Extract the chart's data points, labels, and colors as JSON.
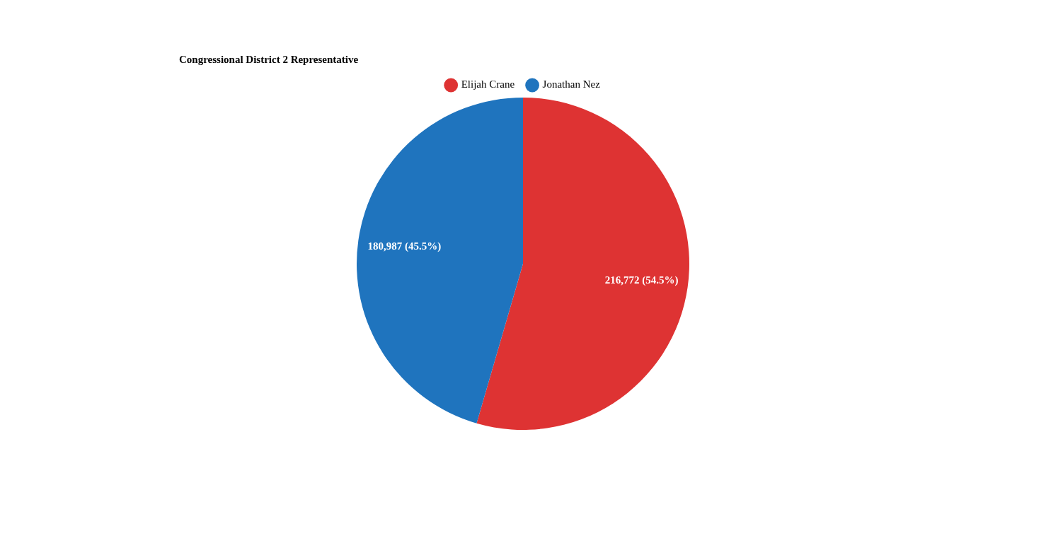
{
  "chart_data": {
    "type": "pie",
    "title": "Congressional District 2 Representative",
    "categories": [
      "Elijah Crane",
      "Jonathan Nez"
    ],
    "values": [
      216772,
      180987
    ],
    "colors": [
      "#de3333",
      "#1f74be"
    ],
    "value_labels": [
      "216,772 (54.5%)",
      "180,987 (45.5%)"
    ],
    "legend": "top"
  }
}
